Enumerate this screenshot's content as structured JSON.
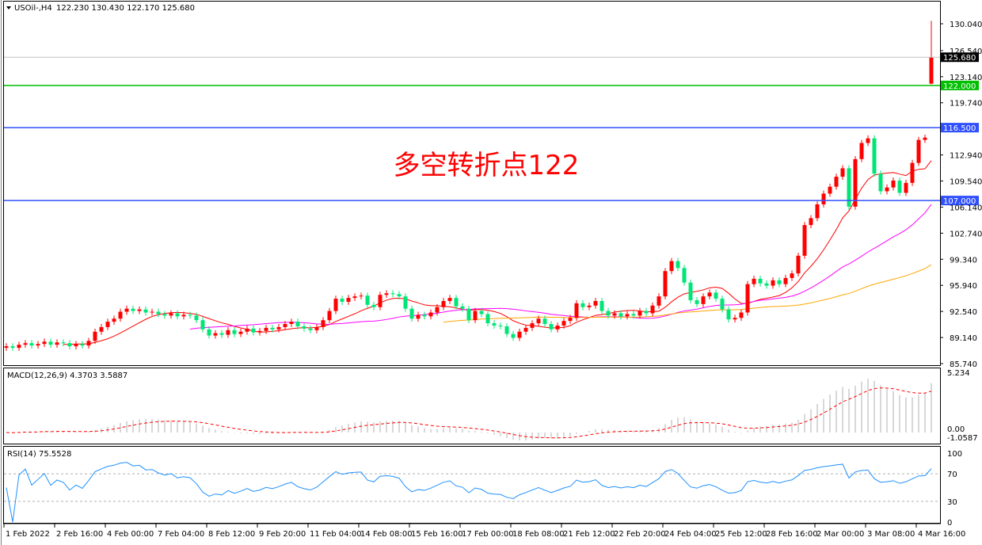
{
  "header": {
    "symbol": "USOil-,H4",
    "ohlc": "122.230 130.430 122.170 125.680"
  },
  "annotation": {
    "text": "多空转折点122",
    "color": "#ff0000"
  },
  "colors": {
    "up": "#ff0000",
    "down": "#00e676",
    "ma_fast": "#ff0000",
    "ma_mid": "#ff00ff",
    "ma_slow": "#ffa500",
    "level_green": "#00c000",
    "level_blue": "#3050ff",
    "macd_hist": "#b0b0b0",
    "macd_signal": "#ff0000",
    "rsi": "#1e90ff"
  },
  "chart_data": [
    {
      "type": "candlestick",
      "title": "USOil-,H4",
      "ylim": [
        85.74,
        130.04
      ],
      "y_ticks": [
        "130.040",
        "126.540",
        "123.140",
        "119.740",
        "112.940",
        "109.540",
        "106.140",
        "102.740",
        "99.340",
        "95.940",
        "92.540",
        "89.140",
        "85.740"
      ],
      "x_ticks": [
        "1 Feb 2022",
        "2 Feb 16:00",
        "4 Feb 00:00",
        "7 Feb 04:00",
        "8 Feb 12:00",
        "9 Feb 20:00",
        "11 Feb 04:00",
        "14 Feb 08:00",
        "15 Feb 16:00",
        "17 Feb 00:00",
        "18 Feb 08:00",
        "21 Feb 12:00",
        "22 Feb 20:00",
        "24 Feb 04:00",
        "25 Feb 12:00",
        "28 Feb 16:00",
        "2 Mar 00:00",
        "3 Mar 08:00",
        "4 Mar 16:00"
      ],
      "closes": [
        88.0,
        87.8,
        88.2,
        88.4,
        88.1,
        88.3,
        88.6,
        88.2,
        88.5,
        88.4,
        88.0,
        88.3,
        88.1,
        88.7,
        89.9,
        90.5,
        91.2,
        91.6,
        92.5,
        92.9,
        92.6,
        92.8,
        92.4,
        92.5,
        92.2,
        92.0,
        92.3,
        91.9,
        92.1,
        92.0,
        91.4,
        90.2,
        89.4,
        89.7,
        89.5,
        90.1,
        89.6,
        89.9,
        90.3,
        89.8,
        90.0,
        90.4,
        90.2,
        90.5,
        90.9,
        91.2,
        90.6,
        90.3,
        90.1,
        90.5,
        91.4,
        92.6,
        94.2,
        93.8,
        94.3,
        94.5,
        94.6,
        93.4,
        93.1,
        94.7,
        94.9,
        94.8,
        94.5,
        92.9,
        91.6,
        92.1,
        91.9,
        92.4,
        93.1,
        93.9,
        94.3,
        93.2,
        92.9,
        91.4,
        92.6,
        92.2,
        91.0,
        90.7,
        90.6,
        89.6,
        89.1,
        89.9,
        90.4,
        91.0,
        91.6,
        90.9,
        90.2,
        90.7,
        91.3,
        91.7,
        93.6,
        93.1,
        93.3,
        93.9,
        92.6,
        92.0,
        92.3,
        91.9,
        92.2,
        92.0,
        92.6,
        92.3,
        93.3,
        94.5,
        97.8,
        99.1,
        98.2,
        96.3,
        94.0,
        93.5,
        94.5,
        95.0,
        94.2,
        92.8,
        91.5,
        91.7,
        92.4,
        96.1,
        96.8,
        96.2,
        95.9,
        96.6,
        96.1,
        96.9,
        97.5,
        99.8,
        103.8,
        104.7,
        106.5,
        107.9,
        108.8,
        110.1,
        111.2,
        106.2,
        112.4,
        114.5,
        115.1,
        110.5,
        108.2,
        108.7,
        109.6,
        108.0,
        109.3,
        111.9,
        114.9,
        115.2
      ],
      "last_candle": {
        "open": 122.23,
        "high": 130.43,
        "low": 122.17,
        "close": 125.68
      },
      "levels": [
        {
          "value": "125.680",
          "kind": "bid",
          "color": "#000000"
        },
        {
          "value": "122.000",
          "kind": "level",
          "color": "#00c000"
        },
        {
          "value": "116.500",
          "kind": "level",
          "color": "#3050ff"
        },
        {
          "value": "107.000",
          "kind": "level",
          "color": "#3050ff"
        }
      ]
    },
    {
      "type": "bar",
      "title": "MACD(12,26,9) 4.3703 3.5887",
      "ylim": [
        -1.0587,
        5.234
      ],
      "y_ticks": [
        "5.234",
        "0.00",
        "-1.0587"
      ]
    },
    {
      "type": "line",
      "title": "RSI(14) 75.5528",
      "ylim": [
        0,
        100
      ],
      "y_ticks": [
        "100",
        "70",
        "30",
        "0"
      ],
      "levels": [
        70,
        30
      ]
    }
  ]
}
